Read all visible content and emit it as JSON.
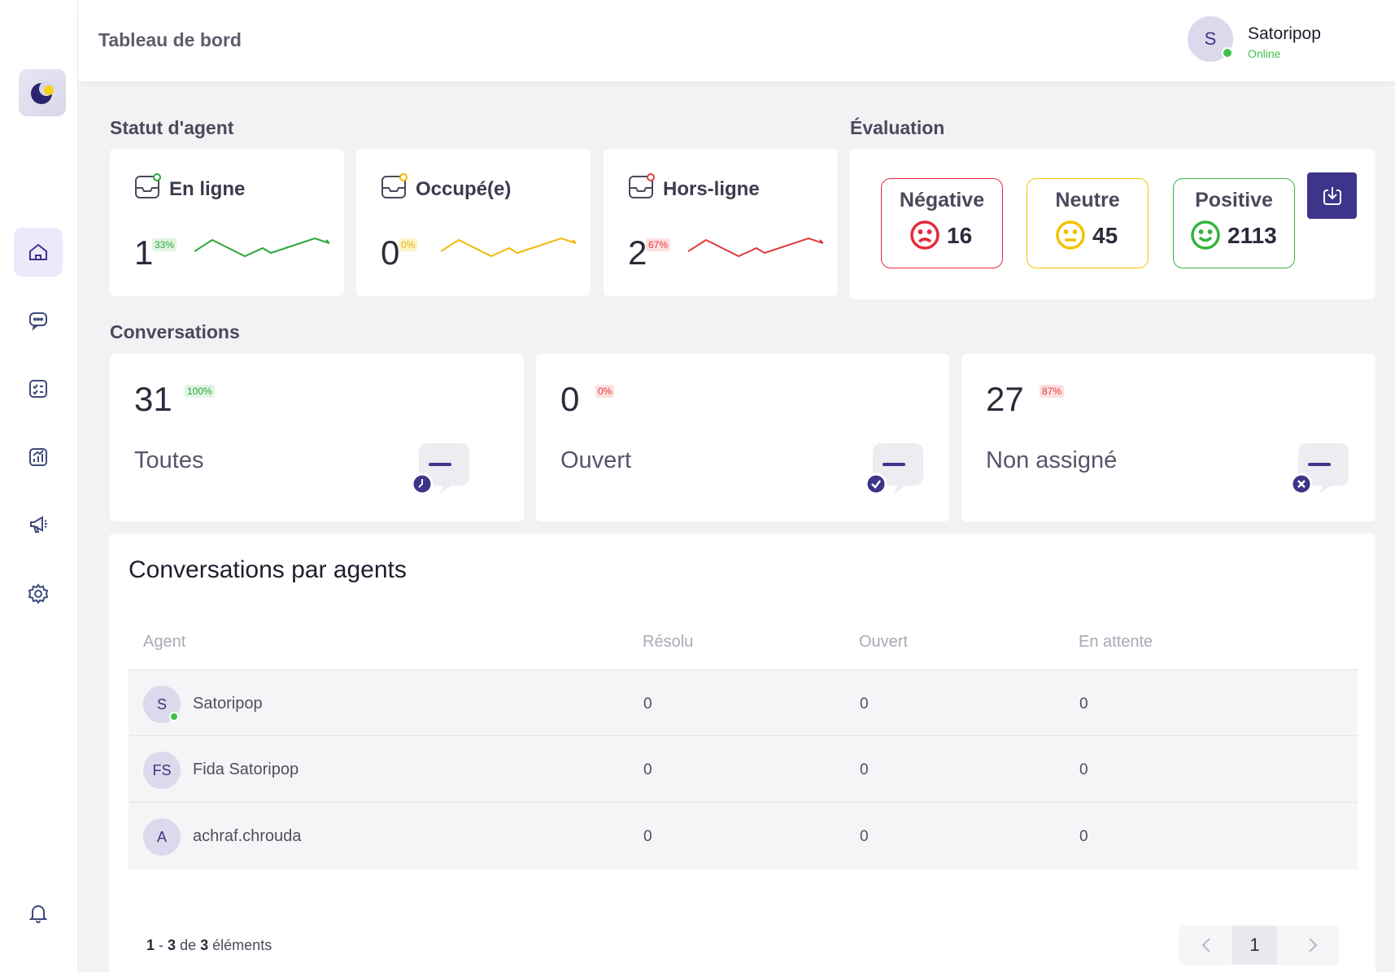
{
  "header": {
    "title": "Tableau de bord",
    "user": {
      "initial": "S",
      "name": "Satoripop",
      "status": "Online"
    }
  },
  "agent_status": {
    "title": "Statut d'agent",
    "cards": [
      {
        "label": "En ligne",
        "value": "1",
        "percent": "33%",
        "color": "#2aa53a"
      },
      {
        "label": "Occupé(e)",
        "value": "0",
        "percent": "0%",
        "color": "#f2b705"
      },
      {
        "label": "Hors-ligne",
        "value": "2",
        "percent": "67%",
        "color": "#e23a3a"
      }
    ]
  },
  "evaluation": {
    "title": "Évaluation",
    "negative": {
      "label": "Négative",
      "value": "16",
      "color": "#e5283c"
    },
    "neutral": {
      "label": "Neutre",
      "value": "45",
      "color": "#f2c200"
    },
    "positive": {
      "label": "Positive",
      "value": "2113",
      "color": "#36b340"
    }
  },
  "conversations": {
    "title": "Conversations",
    "cards": [
      {
        "value": "31",
        "percent": "100%",
        "label": "Toutes"
      },
      {
        "value": "0",
        "percent": "0%",
        "label": "Ouvert"
      },
      {
        "value": "27",
        "percent": "87%",
        "label": "Non assigné"
      }
    ]
  },
  "agents_table": {
    "title": "Conversations par agents",
    "columns": [
      "Agent",
      "Résolu",
      "Ouvert",
      "En attente"
    ],
    "rows": [
      {
        "initials": "S",
        "name": "Satoripop",
        "resolved": "0",
        "open": "0",
        "pending": "0"
      },
      {
        "initials": "FS",
        "name": "Fida Satoripop",
        "resolved": "0",
        "open": "0",
        "pending": "0"
      },
      {
        "initials": "A",
        "name": "achraf.chrouda",
        "resolved": "0",
        "open": "0",
        "pending": "0"
      }
    ],
    "pagination": {
      "from": "1",
      "to": "3",
      "sep1": "-",
      "sep2": "de",
      "total": "3",
      "suffix": "éléments",
      "current_page": "1"
    }
  },
  "colors": {
    "accent": "#3d3589",
    "online": "#3fc24b"
  }
}
